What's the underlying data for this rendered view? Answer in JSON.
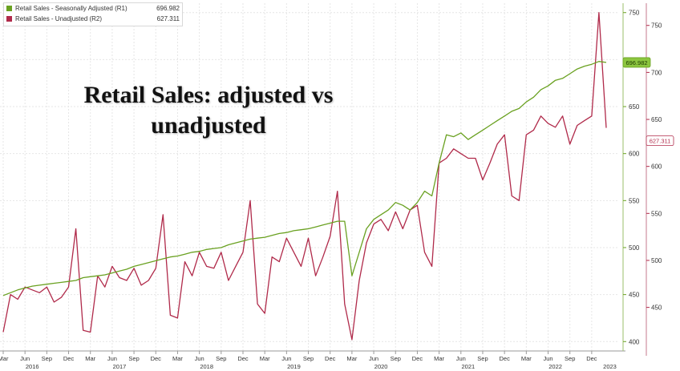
{
  "legend": {
    "items": [
      {
        "name": "Retail Sales - Seasonally Adjusted (R1)",
        "value": "696.982",
        "color": "#6aa121"
      },
      {
        "name": "Retail Sales - Unadjusted (R2)",
        "value": "627.311",
        "color": "#b02a4a"
      }
    ]
  },
  "headline": {
    "line1": "Retail Sales: adjusted vs",
    "line2": "unadjusted"
  },
  "chart_data": {
    "type": "line",
    "title": "Retail Sales: adjusted vs unadjusted",
    "x_start": "2016-03",
    "x_months": 84,
    "ticks": [
      {
        "month": 0,
        "label": "Mar"
      },
      {
        "month": 3,
        "label": "Jun"
      },
      {
        "month": 6,
        "label": "Sep"
      },
      {
        "month": 9,
        "label": "Dec"
      },
      {
        "month": 12,
        "label": "Mar"
      },
      {
        "month": 15,
        "label": "Jun"
      },
      {
        "month": 18,
        "label": "Sep"
      },
      {
        "month": 21,
        "label": "Dec"
      },
      {
        "month": 24,
        "label": "Mar"
      },
      {
        "month": 27,
        "label": "Jun"
      },
      {
        "month": 30,
        "label": "Sep"
      },
      {
        "month": 33,
        "label": "Dec"
      },
      {
        "month": 36,
        "label": "Mar"
      },
      {
        "month": 39,
        "label": "Jun"
      },
      {
        "month": 42,
        "label": "Sep"
      },
      {
        "month": 45,
        "label": "Dec"
      },
      {
        "month": 48,
        "label": "Mar"
      },
      {
        "month": 51,
        "label": "Jun"
      },
      {
        "month": 54,
        "label": "Sep"
      },
      {
        "month": 57,
        "label": "Dec"
      },
      {
        "month": 60,
        "label": "Mar"
      },
      {
        "month": 63,
        "label": "Jun"
      },
      {
        "month": 66,
        "label": "Sep"
      },
      {
        "month": 69,
        "label": "Dec"
      },
      {
        "month": 72,
        "label": "Mar"
      },
      {
        "month": 75,
        "label": "Jun"
      },
      {
        "month": 78,
        "label": "Sep"
      },
      {
        "month": 81,
        "label": "Dec"
      }
    ],
    "years": [
      {
        "month": 4,
        "label": "2016"
      },
      {
        "month": 16,
        "label": "2017"
      },
      {
        "month": 28,
        "label": "2018"
      },
      {
        "month": 40,
        "label": "2019"
      },
      {
        "month": 52,
        "label": "2020"
      },
      {
        "month": 64,
        "label": "2021"
      },
      {
        "month": 76,
        "label": "2022"
      },
      {
        "month": 83.5,
        "label": "2023"
      }
    ],
    "r1_axis": {
      "min": 390,
      "max": 760,
      "ticks": [
        400,
        450,
        500,
        550,
        600,
        650,
        700,
        750
      ]
    },
    "r2_axis": {
      "min": 390,
      "max": 760,
      "ticks": [
        400,
        450,
        500,
        550,
        600,
        650,
        700,
        750
      ]
    },
    "series": [
      {
        "name": "Retail Sales - Seasonally Adjusted (R1)",
        "axis": "R1",
        "color": "#6aa121",
        "last_label": "696.982",
        "values": [
          449,
          452,
          455,
          457,
          459,
          460,
          461,
          462,
          463,
          464,
          465,
          468,
          469,
          470,
          471,
          473,
          475,
          477,
          480,
          482,
          484,
          486,
          488,
          490,
          491,
          493,
          495,
          496,
          498,
          499,
          500,
          503,
          505,
          507,
          509,
          510,
          511,
          513,
          515,
          516,
          518,
          519,
          520,
          522,
          524,
          526,
          528,
          528,
          470,
          495,
          520,
          530,
          535,
          540,
          548,
          545,
          540,
          548,
          560,
          555,
          590,
          620,
          618,
          622,
          615,
          620,
          625,
          630,
          635,
          640,
          645,
          648,
          655,
          660,
          668,
          672,
          678,
          680,
          685,
          690,
          693,
          695,
          698,
          696.982
        ]
      },
      {
        "name": "Retail Sales - Unadjusted (R2)",
        "axis": "R2",
        "color": "#b02a4a",
        "last_label": "627.311",
        "values": [
          410,
          450,
          445,
          458,
          455,
          452,
          458,
          442,
          447,
          458,
          520,
          412,
          410,
          470,
          458,
          480,
          468,
          465,
          478,
          460,
          465,
          478,
          535,
          428,
          425,
          485,
          470,
          495,
          480,
          478,
          495,
          465,
          480,
          495,
          550,
          440,
          430,
          490,
          485,
          510,
          495,
          480,
          510,
          470,
          490,
          512,
          560,
          440,
          402,
          465,
          505,
          525,
          530,
          518,
          538,
          520,
          540,
          545,
          495,
          480,
          590,
          595,
          605,
          600,
          595,
          595,
          572,
          590,
          610,
          620,
          555,
          550,
          620,
          625,
          640,
          632,
          628,
          640,
          610,
          630,
          635,
          640,
          750,
          627.311
        ]
      }
    ]
  }
}
